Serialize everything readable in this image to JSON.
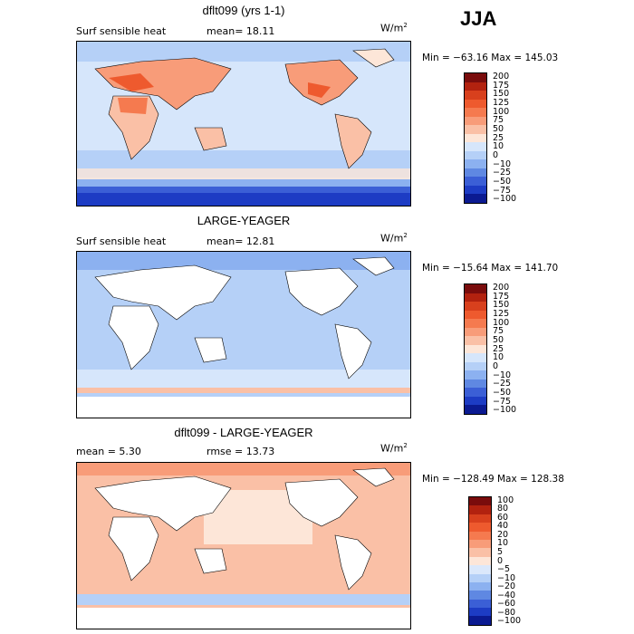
{
  "season": "JJA",
  "panels": [
    {
      "title": "dflt099 (yrs 1-1)",
      "field_label": "Surf sensible heat",
      "stat1": "mean=  18.11",
      "stat2": "",
      "units": "W/m",
      "minmax": "Min = −63.16  Max = 145.03",
      "colorbar": [
        "200",
        "175",
        "150",
        "125",
        "100",
        "75",
        "50",
        "25",
        "10",
        "0",
        "−10",
        "−25",
        "−50",
        "−75",
        "−100"
      ],
      "colors": [
        "#7a0c0c",
        "#b2220f",
        "#d8401d",
        "#ee5a2e",
        "#f57a4f",
        "#f89c79",
        "#fac0a6",
        "#fde6d8",
        "#d6e6fb",
        "#b5d0f7",
        "#8cb1f0",
        "#5f88e2",
        "#3b5fd6",
        "#1d3cc4",
        "#0b1a91"
      ]
    },
    {
      "title": "LARGE-YEAGER",
      "field_label": "Surf sensible heat",
      "stat1": "mean=  12.81",
      "stat2": "",
      "units": "W/m",
      "minmax": "Min = −15.64  Max = 141.70",
      "colorbar": [
        "200",
        "175",
        "150",
        "125",
        "100",
        "75",
        "50",
        "25",
        "10",
        "0",
        "−10",
        "−25",
        "−50",
        "−75",
        "−100"
      ],
      "colors": [
        "#7a0c0c",
        "#b2220f",
        "#d8401d",
        "#ee5a2e",
        "#f57a4f",
        "#f89c79",
        "#fac0a6",
        "#fde6d8",
        "#d6e6fb",
        "#b5d0f7",
        "#8cb1f0",
        "#5f88e2",
        "#3b5fd6",
        "#1d3cc4",
        "#0b1a91"
      ]
    },
    {
      "title": "dflt099 - LARGE-YEAGER",
      "field_label": "",
      "stat1": "mean =   5.30",
      "stat2": "rmse =  13.73",
      "units": "W/m",
      "minmax": "Min = −128.49  Max = 128.38",
      "colorbar": [
        "100",
        "80",
        "60",
        "40",
        "20",
        "10",
        "5",
        "0",
        "−5",
        "−10",
        "−20",
        "−40",
        "−60",
        "−80",
        "−100"
      ],
      "colors": [
        "#7a0c0c",
        "#b2220f",
        "#d8401d",
        "#ee5a2e",
        "#f57a4f",
        "#f89c79",
        "#fac0a6",
        "#fde6d8",
        "#dbe8fb",
        "#b5d0f7",
        "#8cb1f0",
        "#5f88e2",
        "#3b5fd6",
        "#1d3cc4",
        "#0b1a91"
      ]
    }
  ]
}
